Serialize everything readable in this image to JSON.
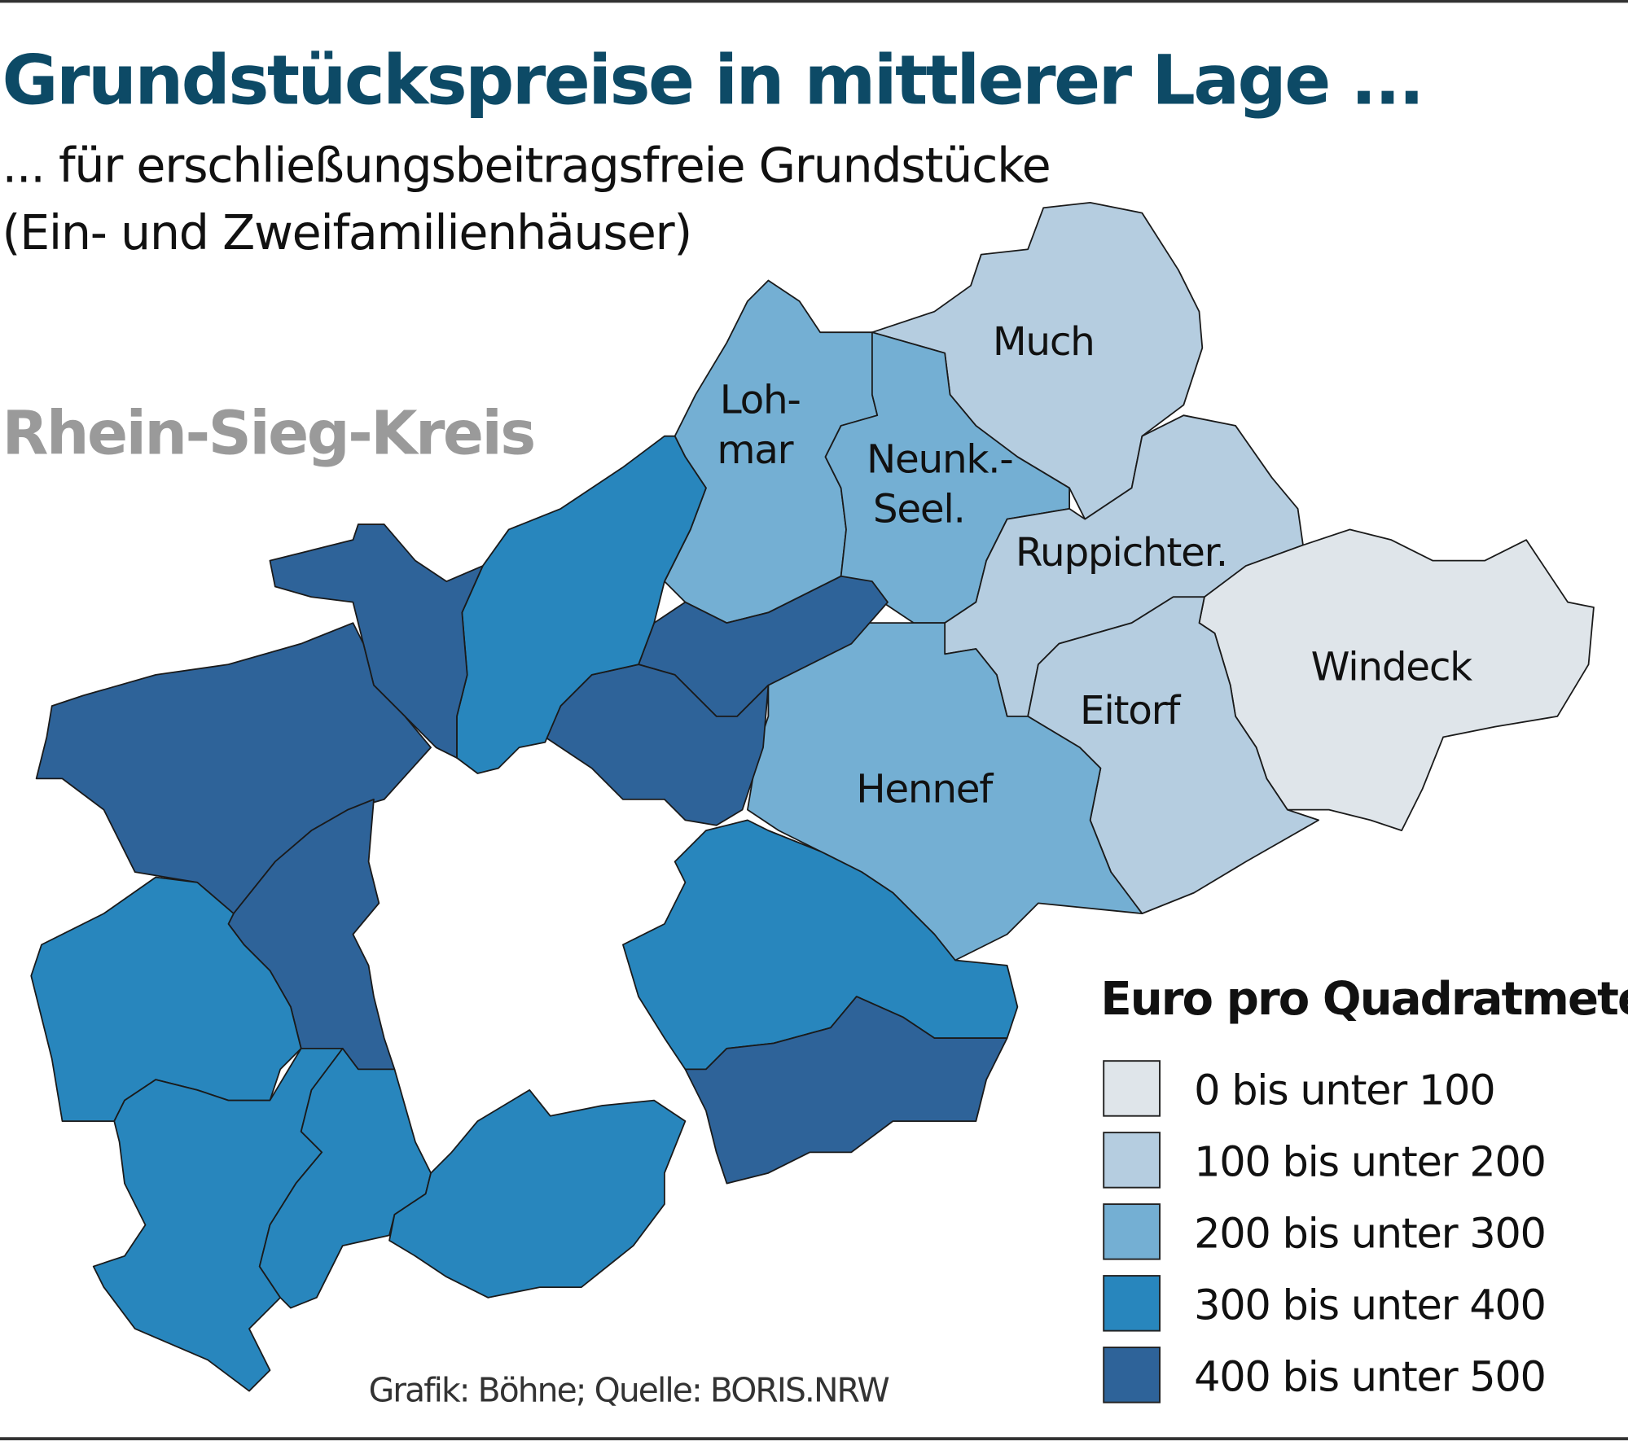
{
  "title": "Grundstückspreise in mittlerer Lage ...",
  "subtitle_line1": "... für erschließungsbeitragsfreie Grundstücke",
  "subtitle_line2": "(Ein- und Zweifamilienhäuser)",
  "region_label": "Rhein-Sieg-Kreis",
  "source": "Grafik: Böhne; Quelle: BORIS.NRW",
  "colors": {
    "title": "#0d4a66",
    "region_label": "#9a9a9a",
    "border": "#4a5a8a"
  },
  "legend": {
    "title": "Euro pro Quadratmeter",
    "classes": [
      {
        "label": "0 bis unter 100",
        "color": "#dfe5ea"
      },
      {
        "label": "100 bis unter 200",
        "color": "#b5cde0"
      },
      {
        "label": "200 bis unter 300",
        "color": "#74afd3"
      },
      {
        "label": "300 bis unter 400",
        "color": "#2886bd"
      },
      {
        "label": "400 bis unter 500",
        "color": "#2e6399"
      }
    ]
  },
  "municipalities": [
    {
      "label": "Much",
      "class": 1
    },
    {
      "label": "Loh-\nmar",
      "label_lines": [
        "Loh-",
        "mar"
      ],
      "class": 2
    },
    {
      "label_lines": [
        "Neunk.-",
        "Seel."
      ],
      "class": 2
    },
    {
      "label": "Ruppichter.",
      "class": 1
    },
    {
      "label": "Windeck",
      "class": 0
    },
    {
      "label": "Eitorf",
      "class": 1
    },
    {
      "label": "Hennef",
      "class": 2
    },
    {
      "class": 4
    },
    {
      "class": 4
    },
    {
      "class": 3
    },
    {
      "class": 4
    },
    {
      "class": 4
    },
    {
      "class": 4
    },
    {
      "class": 3
    },
    {
      "class": 3
    },
    {
      "class": 3
    },
    {
      "class": 3
    },
    {
      "class": 3
    },
    {
      "class": 4
    }
  ]
}
